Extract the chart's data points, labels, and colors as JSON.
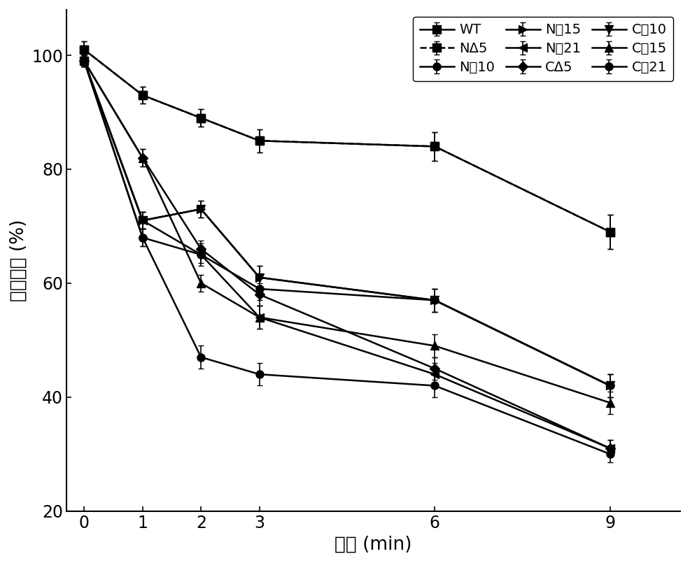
{
  "x": [
    0,
    1,
    2,
    3,
    6,
    9
  ],
  "series_order": [
    "WT",
    "NΔ5",
    "N㥅10",
    "N㥅15",
    "N㥅21",
    "CΔ5",
    "C㥅10",
    "C㥅15",
    "C㥅21"
  ],
  "series": {
    "WT": {
      "y": [
        101,
        93,
        89,
        85,
        84,
        69
      ],
      "yerr": [
        1.5,
        1.5,
        1.5,
        2.0,
        2.5,
        3.0
      ],
      "marker": "s",
      "linestyle": "-",
      "msize": 8
    },
    "NΔ5": {
      "y": [
        101,
        93,
        89,
        85,
        84,
        69
      ],
      "yerr": [
        1.5,
        1.5,
        1.5,
        2.0,
        2.5,
        3.0
      ],
      "marker": "s",
      "linestyle": "--",
      "msize": 8
    },
    "N㥅10": {
      "y": [
        99,
        68,
        65,
        59,
        57,
        42
      ],
      "yerr": [
        1.0,
        1.5,
        2.0,
        2.0,
        2.0,
        2.0
      ],
      "marker": "o",
      "linestyle": "-",
      "msize": 8
    },
    "N㥅15": {
      "y": [
        99,
        71,
        73,
        61,
        57,
        42
      ],
      "yerr": [
        1.0,
        1.5,
        1.5,
        2.0,
        2.0,
        2.0
      ],
      "marker": ">",
      "linestyle": "-",
      "msize": 8
    },
    "N㥅21": {
      "y": [
        99,
        71,
        65,
        54,
        44,
        31
      ],
      "yerr": [
        1.0,
        1.5,
        1.5,
        2.0,
        2.0,
        1.5
      ],
      "marker": "<",
      "linestyle": "-",
      "msize": 8
    },
    "CΔ5": {
      "y": [
        99,
        82,
        66,
        58,
        45,
        31
      ],
      "yerr": [
        1.0,
        1.5,
        1.5,
        2.0,
        2.0,
        1.5
      ],
      "marker": "D",
      "linestyle": "-",
      "msize": 7
    },
    "C㥅10": {
      "y": [
        99,
        71,
        73,
        61,
        57,
        42
      ],
      "yerr": [
        1.0,
        1.5,
        1.5,
        2.0,
        2.0,
        2.0
      ],
      "marker": "v",
      "linestyle": "-",
      "msize": 8
    },
    "C㥅15": {
      "y": [
        99,
        82,
        60,
        54,
        49,
        39
      ],
      "yerr": [
        1.0,
        1.5,
        1.5,
        2.0,
        2.0,
        2.0
      ],
      "marker": "^",
      "linestyle": "-",
      "msize": 8
    },
    "C㥅21": {
      "y": [
        99,
        68,
        47,
        44,
        42,
        30
      ],
      "yerr": [
        1.0,
        1.5,
        2.0,
        2.0,
        2.0,
        1.5
      ],
      "marker": "o",
      "linestyle": "-",
      "msize": 8
    }
  },
  "xlabel": "时间 (min)",
  "ylabel": "残余酶活 (%)",
  "ylim": [
    20,
    108
  ],
  "yticks": [
    20,
    40,
    60,
    80,
    100
  ],
  "xticks": [
    0,
    1,
    2,
    3,
    6,
    9
  ],
  "background_color": "#ffffff",
  "line_color": "black",
  "fontsize_label": 19,
  "fontsize_tick": 17,
  "fontsize_legend": 14
}
